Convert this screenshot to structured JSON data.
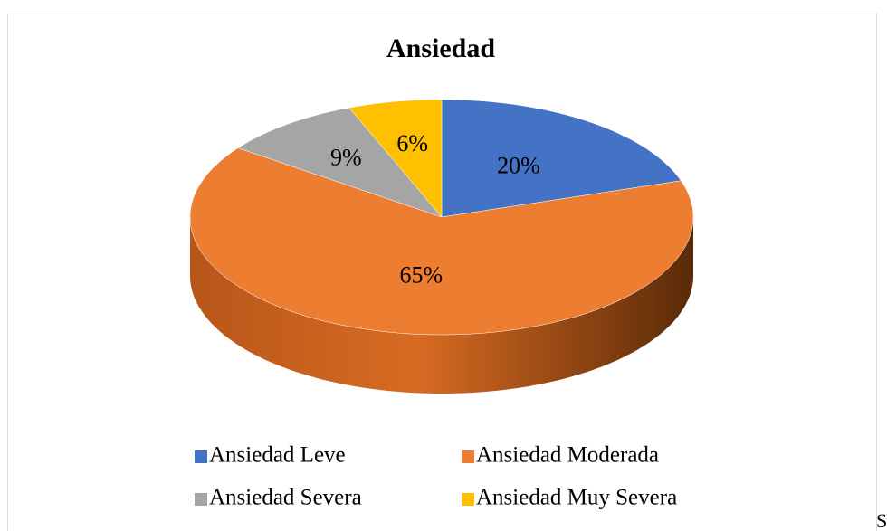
{
  "chart_data": {
    "type": "pie",
    "title": "Ansiedad",
    "categories": [
      "Ansiedad Leve",
      "Ansiedad Moderada",
      "Ansiedad Severa",
      "Ansiedad Muy Severa"
    ],
    "values": [
      20,
      65,
      9,
      6
    ],
    "value_labels": [
      "20%",
      "65%",
      "9%",
      "6%"
    ],
    "colors": [
      "#4472c4",
      "#ed7d31",
      "#a5a5a5",
      "#ffc000"
    ],
    "legend": "bottom"
  },
  "footer_text": "S"
}
